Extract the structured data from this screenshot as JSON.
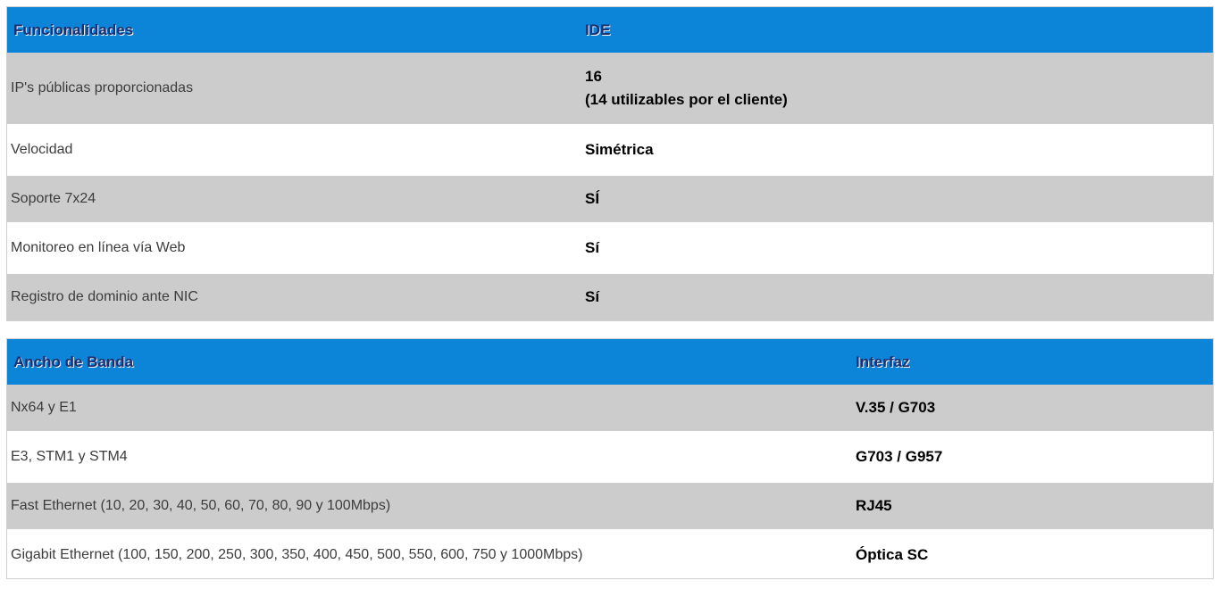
{
  "colors": {
    "header_bg": "#0c85d9",
    "header_text": "#1d2d6e",
    "row_alt_bg": "#cccccc",
    "row_bg": "#ffffff",
    "label_text": "#3c3c3c",
    "value_text": "#000000",
    "table_border": "#cfcfcf"
  },
  "tables": [
    {
      "headers": [
        "Funcionalidades",
        "IDE"
      ],
      "rows": [
        {
          "label": "IP's públicas proporcionadas",
          "value_lines": [
            "16",
            "(14 utilizables por el cliente)"
          ]
        },
        {
          "label": "Velocidad",
          "value_lines": [
            "Simétrica"
          ]
        },
        {
          "label": "Soporte 7x24",
          "value_lines": [
            "SÍ"
          ]
        },
        {
          "label": "Monitoreo en línea vía Web",
          "value_lines": [
            "Sí"
          ]
        },
        {
          "label": "Registro de dominio ante NIC",
          "value_lines": [
            "Sí"
          ]
        }
      ]
    },
    {
      "headers": [
        "Ancho de Banda",
        "Interfaz"
      ],
      "rows": [
        {
          "label": "Nx64 y E1",
          "value_lines": [
            "V.35 / G703"
          ]
        },
        {
          "label": "E3, STM1 y STM4",
          "value_lines": [
            "G703 / G957"
          ]
        },
        {
          "label": "Fast Ethernet (10, 20, 30, 40, 50, 60, 70, 80, 90 y 100Mbps)",
          "value_lines": [
            "RJ45"
          ]
        },
        {
          "label": "Gigabit Ethernet (100, 150, 200, 250, 300, 350, 400, 450, 500, 550, 600, 750 y 1000Mbps)",
          "value_lines": [
            "Óptica SC"
          ]
        }
      ]
    }
  ]
}
